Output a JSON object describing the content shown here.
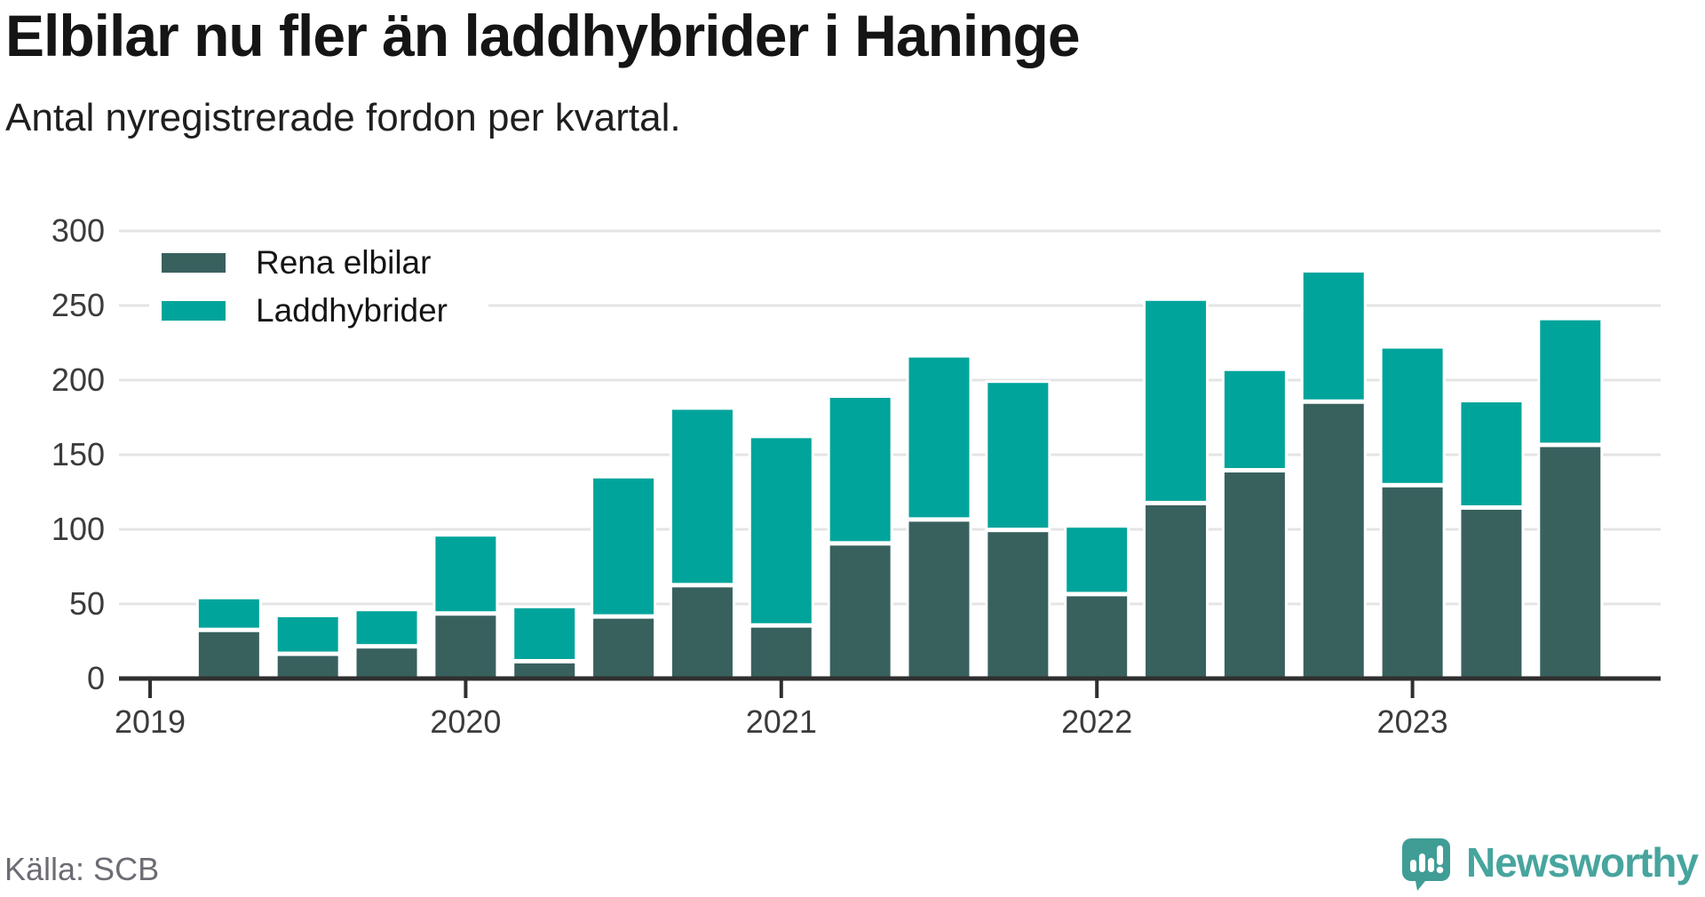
{
  "title": "Elbilar nu fler än laddhybrider i Haninge",
  "subtitle": "Antal nyregistrerade fordon per kvartal.",
  "source": "Källa: SCB",
  "brand": {
    "name": "Newsworthy",
    "wordmark_color": "#47a59e",
    "icon_color": "#3f9d96"
  },
  "colors": {
    "rena_elbilar": "#38615e",
    "laddhybrider": "#00a49b",
    "grid": "#e4e4e4",
    "axis": "#2f2f2f",
    "tick_label": "#3b3b3b"
  },
  "chart_data": {
    "type": "bar",
    "stacked": true,
    "title": "Elbilar nu fler än laddhybrider i Haninge",
    "subtitle": "Antal nyregistrerade fordon per kvartal.",
    "xlabel": "",
    "ylabel": "",
    "ylim": [
      0,
      300
    ],
    "yticks": [
      0,
      50,
      100,
      150,
      200,
      250,
      300
    ],
    "grid": true,
    "legend_position": "top-left",
    "x_tick_labels": [
      "2019",
      "2020",
      "2021",
      "2022",
      "2023"
    ],
    "x_tick_quarter_offsets": [
      0,
      4,
      8,
      12,
      16
    ],
    "start_offset_quarters": 1,
    "quarters": [
      "2019 kv2",
      "2019 kv3",
      "2019 kv4",
      "2020 kv1",
      "2020 kv2",
      "2020 kv3",
      "2020 kv4",
      "2021 kv1",
      "2021 kv2",
      "2021 kv3",
      "2021 kv4",
      "2022 kv1",
      "2022 kv2",
      "2022 kv3",
      "2022 kv4",
      "2023 kv1",
      "2023 kv2",
      "2023 kv3"
    ],
    "series": [
      {
        "name": "Rena elbilar",
        "color": "#38615e",
        "values": [
          32,
          16,
          21,
          43,
          11,
          41,
          62,
          35,
          90,
          106,
          99,
          56,
          117,
          139,
          185,
          129,
          114,
          156
        ]
      },
      {
        "name": "Laddhybrider",
        "color": "#00a49b",
        "values": [
          22,
          26,
          25,
          53,
          37,
          94,
          119,
          127,
          99,
          110,
          100,
          46,
          137,
          68,
          88,
          93,
          72,
          85
        ]
      }
    ],
    "stack_totals": [
      54,
      42,
      46,
      96,
      48,
      135,
      181,
      162,
      189,
      216,
      199,
      102,
      254,
      207,
      273,
      222,
      186,
      241
    ]
  }
}
